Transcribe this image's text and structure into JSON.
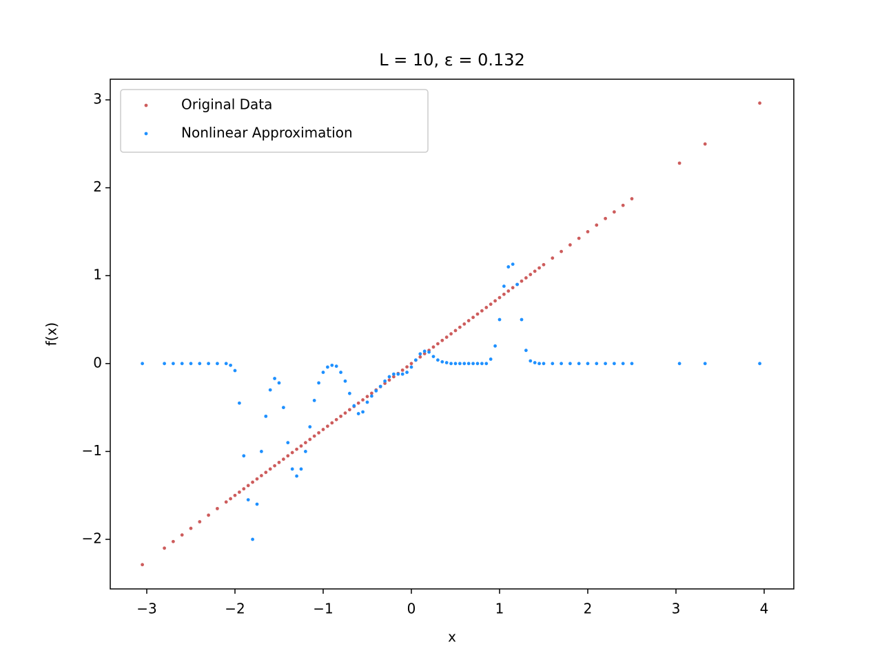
{
  "chart_data": {
    "type": "scatter",
    "title": "L = 10, ε = 0.132",
    "x_label": "x",
    "y_label": "f(x)",
    "x": [
      -3.05,
      -2.8,
      -2.7,
      -2.6,
      -2.5,
      -2.4,
      -2.3,
      -2.2,
      -2.1,
      -2.05,
      -2.0,
      -1.95,
      -1.9,
      -1.85,
      -1.8,
      -1.75,
      -1.7,
      -1.65,
      -1.6,
      -1.55,
      -1.5,
      -1.45,
      -1.4,
      -1.35,
      -1.3,
      -1.25,
      -1.2,
      -1.15,
      -1.1,
      -1.05,
      -1.0,
      -0.95,
      -0.9,
      -0.85,
      -0.8,
      -0.75,
      -0.7,
      -0.65,
      -0.6,
      -0.55,
      -0.5,
      -0.45,
      -0.4,
      -0.35,
      -0.3,
      -0.25,
      -0.2,
      -0.15,
      -0.1,
      -0.05,
      0,
      0.05,
      0.1,
      0.15,
      0.2,
      0.25,
      0.3,
      0.35,
      0.4,
      0.45,
      0.5,
      0.55,
      0.6,
      0.65,
      0.7,
      0.75,
      0.8,
      0.85,
      0.9,
      0.95,
      1.0,
      1.05,
      1.1,
      1.15,
      1.2,
      1.25,
      1.3,
      1.35,
      1.4,
      1.45,
      1.5,
      1.6,
      1.7,
      1.8,
      1.9,
      2.0,
      2.1,
      2.2,
      2.3,
      2.4,
      2.5,
      3.04,
      3.33,
      3.95
    ],
    "series": [
      {
        "name": "Original Data",
        "color": "#cd5c5c",
        "values": [
          -2.288,
          -2.1,
          -2.025,
          -1.95,
          -1.875,
          -1.8,
          -1.725,
          -1.65,
          -1.575,
          -1.538,
          -1.5,
          -1.463,
          -1.425,
          -1.388,
          -1.35,
          -1.313,
          -1.275,
          -1.238,
          -1.2,
          -1.163,
          -1.125,
          -1.088,
          -1.05,
          -1.013,
          -0.975,
          -0.938,
          -0.9,
          -0.863,
          -0.825,
          -0.788,
          -0.75,
          -0.713,
          -0.675,
          -0.638,
          -0.6,
          -0.563,
          -0.525,
          -0.488,
          -0.45,
          -0.413,
          -0.375,
          -0.338,
          -0.3,
          -0.263,
          -0.225,
          -0.188,
          -0.15,
          -0.113,
          -0.075,
          -0.038,
          0,
          0.038,
          0.075,
          0.113,
          0.15,
          0.188,
          0.225,
          0.263,
          0.3,
          0.338,
          0.375,
          0.413,
          0.45,
          0.488,
          0.525,
          0.563,
          0.6,
          0.638,
          0.675,
          0.713,
          0.75,
          0.788,
          0.825,
          0.863,
          0.9,
          0.938,
          0.975,
          1.013,
          1.05,
          1.088,
          1.125,
          1.2,
          1.275,
          1.35,
          1.425,
          1.5,
          1.575,
          1.65,
          1.725,
          1.8,
          1.875,
          2.28,
          2.498,
          2.963
        ]
      },
      {
        "name": "Nonlinear Approximation",
        "color": "#1e90ff",
        "values": [
          0,
          0,
          0,
          0,
          0,
          0,
          0,
          0,
          0,
          -0.02,
          -0.08,
          -0.45,
          -1.05,
          -1.55,
          -2.0,
          -1.6,
          -1.0,
          -0.6,
          -0.3,
          -0.17,
          -0.22,
          -0.5,
          -0.9,
          -1.2,
          -1.28,
          -1.2,
          -1.0,
          -0.72,
          -0.42,
          -0.22,
          -0.1,
          -0.04,
          -0.02,
          -0.03,
          -0.1,
          -0.2,
          -0.34,
          -0.48,
          -0.57,
          -0.55,
          -0.44,
          -0.37,
          -0.31,
          -0.26,
          -0.2,
          -0.15,
          -0.12,
          -0.12,
          -0.12,
          -0.1,
          -0.04,
          0.04,
          0.11,
          0.14,
          0.13,
          0.08,
          0.04,
          0.02,
          0.01,
          0,
          0,
          0,
          0,
          0,
          0,
          0,
          0,
          0,
          0.05,
          0.2,
          0.5,
          0.88,
          1.1,
          1.13,
          0.9,
          0.5,
          0.15,
          0.03,
          0.01,
          0,
          0,
          0,
          0,
          0,
          0,
          0,
          0,
          0,
          0,
          0,
          0,
          0,
          0,
          0
        ]
      }
    ],
    "xlim": [
      -3.414,
      4.336
    ],
    "ylim": [
      -2.564,
      3.235
    ],
    "xticks": [
      {
        "value": -3,
        "label": "−3"
      },
      {
        "value": -2,
        "label": "−2"
      },
      {
        "value": -1,
        "label": "−1"
      },
      0,
      1,
      2,
      3,
      4
    ],
    "yticks": [
      {
        "value": -2,
        "label": "−2"
      },
      {
        "value": -1,
        "label": "−1"
      },
      0,
      1,
      2,
      3
    ],
    "legend": "upper left"
  }
}
